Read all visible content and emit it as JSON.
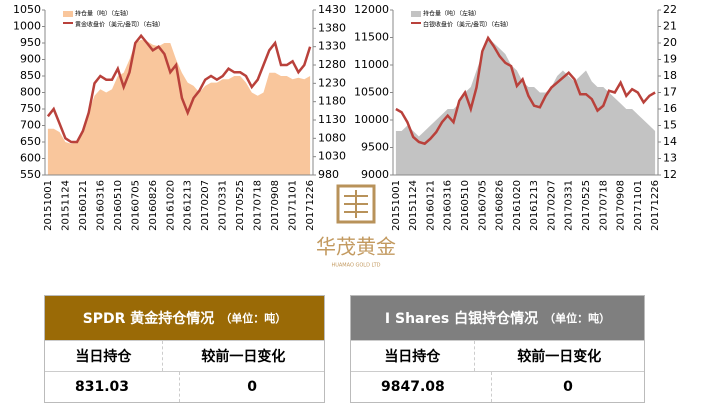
{
  "chart_data": [
    {
      "type": "area",
      "categories": [
        "20151001",
        null,
        null,
        "20151124",
        null,
        null,
        "20160121",
        null,
        null,
        "20160316",
        null,
        null,
        "20160510",
        null,
        null,
        "20160705",
        null,
        null,
        "20160826",
        null,
        null,
        "20161020",
        null,
        null,
        "20161213",
        null,
        null,
        "20170207",
        null,
        null,
        "20170331",
        null,
        null,
        "20170525",
        null,
        null,
        "20170718",
        null,
        null,
        "20170908",
        null,
        null,
        "20171101",
        null,
        null,
        "20171226"
      ],
      "series": [
        {
          "name": "持仓量（吨）（左轴）",
          "type": "area",
          "color": "#f9c69c",
          "values": [
            690,
            690,
            680,
            650,
            645,
            650,
            690,
            740,
            790,
            810,
            800,
            810,
            850,
            860,
            900,
            950,
            960,
            955,
            945,
            940,
            950,
            950,
            900,
            860,
            830,
            820,
            800,
            820,
            830,
            830,
            840,
            840,
            850,
            850,
            830,
            800,
            790,
            800,
            860,
            860,
            850,
            850,
            840,
            845,
            840,
            850
          ]
        },
        {
          "name": "黄金收盘价（美元/盎司）（右轴）",
          "type": "line",
          "axis": "y2",
          "color": "#b9413b",
          "values": [
            1140,
            1160,
            1120,
            1080,
            1070,
            1070,
            1100,
            1150,
            1230,
            1250,
            1240,
            1240,
            1270,
            1220,
            1260,
            1340,
            1360,
            1340,
            1320,
            1330,
            1310,
            1260,
            1280,
            1190,
            1150,
            1190,
            1210,
            1240,
            1250,
            1240,
            1250,
            1270,
            1260,
            1260,
            1250,
            1220,
            1240,
            1280,
            1320,
            1340,
            1280,
            1280,
            1290,
            1260,
            1280,
            1330
          ]
        }
      ],
      "ylim": [
        550,
        1050
      ],
      "yticks": [
        550,
        600,
        650,
        700,
        750,
        800,
        850,
        900,
        950,
        1000,
        1050
      ],
      "y2lim": [
        980,
        1430
      ],
      "y2ticks": [
        980,
        1030,
        1080,
        1130,
        1180,
        1230,
        1280,
        1330,
        1380,
        1430
      ]
    },
    {
      "type": "area",
      "categories": [
        "20151001",
        null,
        null,
        "20151124",
        null,
        null,
        "20160121",
        null,
        null,
        "20160316",
        null,
        null,
        "20160510",
        null,
        null,
        "20160705",
        null,
        null,
        "20160826",
        null,
        null,
        "20161020",
        null,
        null,
        "20161213",
        null,
        null,
        "20170207",
        null,
        null,
        "20170331",
        null,
        null,
        "20170525",
        null,
        null,
        "20170718",
        null,
        null,
        "20170908",
        null,
        null,
        "20171101",
        null,
        null,
        "20171226"
      ],
      "series": [
        {
          "name": "持仓量（吨）（左轴）",
          "type": "area",
          "color": "#c3c3c3",
          "values": [
            9800,
            9800,
            9900,
            9800,
            9700,
            9800,
            9900,
            10000,
            10100,
            10200,
            10200,
            10300,
            10500,
            10600,
            10900,
            11200,
            11500,
            11400,
            11300,
            11200,
            11000,
            10900,
            10700,
            10600,
            10600,
            10500,
            10500,
            10600,
            10800,
            10900,
            10800,
            10700,
            10800,
            10900,
            10700,
            10600,
            10600,
            10500,
            10400,
            10300,
            10200,
            10200,
            10100,
            10000,
            9900,
            9800
          ]
        },
        {
          "name": "白银收盘价（美元/盎司）（右轴）",
          "type": "line",
          "axis": "y2",
          "color": "#b9413b",
          "values": [
            16,
            15.8,
            15.2,
            14.3,
            14,
            13.9,
            14.2,
            14.6,
            15.2,
            15.6,
            15.2,
            16.5,
            17,
            16,
            17.3,
            19.5,
            20.3,
            19.8,
            19.2,
            18.8,
            18.6,
            17.4,
            17.8,
            16.8,
            16.2,
            16.1,
            16.8,
            17.3,
            17.6,
            17.9,
            18.2,
            17.8,
            16.9,
            16.9,
            16.6,
            15.9,
            16.2,
            17.1,
            17,
            17.6,
            16.8,
            17.2,
            17,
            16.4,
            16.8,
            17
          ]
        }
      ],
      "ylim": [
        9000,
        12000
      ],
      "yticks": [
        9000,
        9500,
        10000,
        10500,
        11000,
        11500,
        12000
      ],
      "y2lim": [
        12,
        22
      ],
      "y2ticks": [
        12,
        13,
        14,
        15,
        16,
        17,
        18,
        19,
        20,
        21,
        22
      ]
    }
  ],
  "logo": {
    "name": "华茂黄金",
    "subtitle": "HUAMAO GOLD LTD"
  },
  "tables": [
    {
      "title": "SPDR 黄金持仓情况",
      "unit": "（单位：吨）",
      "color": "#9a6a06",
      "columns": [
        "当日持仓",
        "较前一日变化"
      ],
      "rows": [
        [
          "831.03",
          "0"
        ]
      ]
    },
    {
      "title": "I Shares 白银持仓情况",
      "unit": "（单位：吨）",
      "color": "#7f7f7f",
      "columns": [
        "当日持仓",
        "较前一日变化"
      ],
      "rows": [
        [
          "9847.08",
          "0"
        ]
      ]
    }
  ]
}
